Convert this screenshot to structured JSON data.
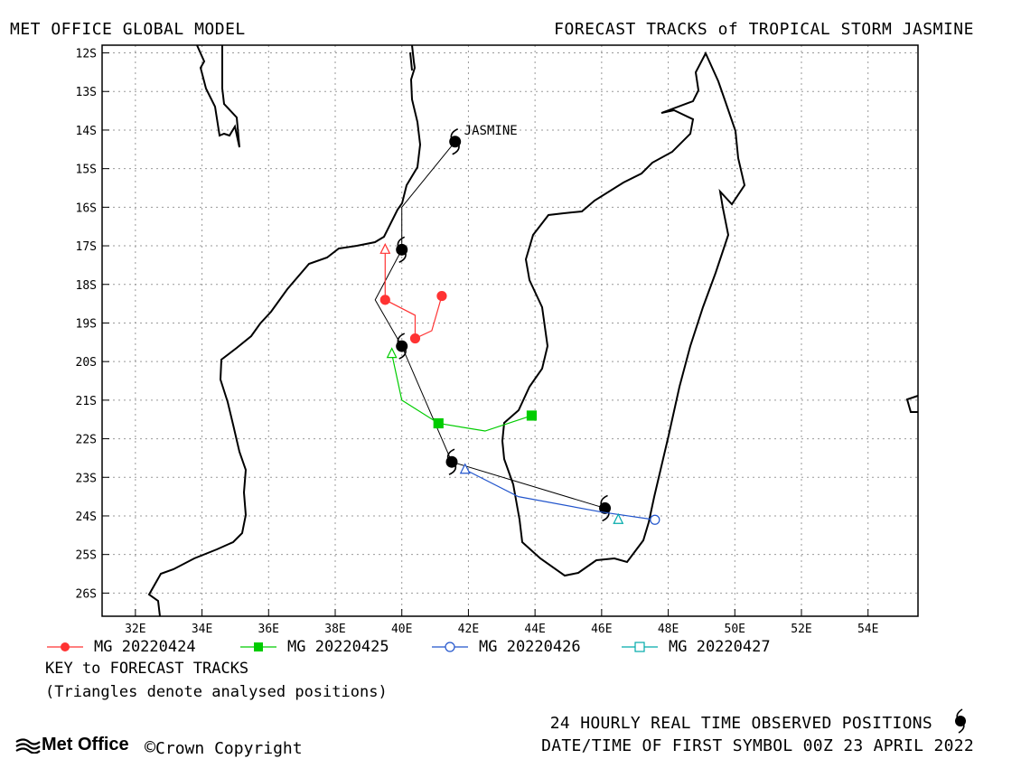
{
  "header": {
    "left": "MET OFFICE GLOBAL MODEL",
    "right": "FORECAST TRACKS of TROPICAL STORM JASMINE"
  },
  "map": {
    "lon_range": [
      31,
      55.5
    ],
    "lat_range": [
      -26.6,
      -11.8
    ],
    "grid": true,
    "x_ticks": [
      "32E",
      "34E",
      "36E",
      "38E",
      "40E",
      "42E",
      "44E",
      "46E",
      "48E",
      "50E",
      "52E",
      "54E"
    ],
    "y_ticks": [
      "12S",
      "13S",
      "14S",
      "15S",
      "16S",
      "17S",
      "18S",
      "19S",
      "20S",
      "21S",
      "22S",
      "23S",
      "24S",
      "25S",
      "26S"
    ],
    "storm_label": "JASMINE",
    "observed_track": [
      [
        41.6,
        -14.3
      ],
      [
        40.0,
        -16.0
      ],
      [
        40.0,
        -17.1
      ],
      [
        39.2,
        -18.4
      ],
      [
        40.0,
        -19.6
      ],
      [
        41.5,
        -22.6
      ],
      [
        46.1,
        -23.8
      ]
    ],
    "observed_symbols": [
      [
        41.6,
        -14.3
      ],
      [
        40.0,
        -17.1
      ],
      [
        40.0,
        -19.6
      ],
      [
        41.5,
        -22.6
      ],
      [
        46.1,
        -23.8
      ]
    ]
  },
  "tracks": [
    {
      "label": "MG 20220424",
      "color": "#ff3333",
      "marker": "circle",
      "filled": true,
      "points": [
        [
          39.5,
          -17.1
        ],
        [
          39.5,
          -18.4
        ],
        [
          40.4,
          -18.8
        ],
        [
          40.4,
          -19.4
        ],
        [
          40.9,
          -19.2
        ],
        [
          41.2,
          -18.3
        ]
      ],
      "analysed": [
        39.5,
        -17.1
      ],
      "markers": [
        [
          39.5,
          -18.4
        ],
        [
          40.4,
          -19.4
        ],
        [
          41.2,
          -18.3
        ]
      ]
    },
    {
      "label": "MG 20220425",
      "color": "#00cc00",
      "marker": "square",
      "filled": true,
      "points": [
        [
          39.7,
          -19.8
        ],
        [
          40.0,
          -21.0
        ],
        [
          41.1,
          -21.6
        ],
        [
          42.5,
          -21.8
        ],
        [
          43.9,
          -21.4
        ]
      ],
      "analysed": [
        39.7,
        -19.8
      ],
      "markers": [
        [
          41.1,
          -21.6
        ],
        [
          43.9,
          -21.4
        ]
      ]
    },
    {
      "label": "MG 20220426",
      "color": "#2255cc",
      "marker": "circle",
      "filled": false,
      "points": [
        [
          41.9,
          -22.8
        ],
        [
          43.5,
          -23.5
        ],
        [
          46.0,
          -23.9
        ],
        [
          47.6,
          -24.1
        ]
      ],
      "analysed": [
        41.9,
        -22.8
      ],
      "markers": [
        [
          47.6,
          -24.1
        ]
      ]
    },
    {
      "label": "MG 20220427",
      "color": "#00aaaa",
      "marker": "square",
      "filled": false,
      "points": [
        [
          46.5,
          -24.1
        ]
      ],
      "analysed": [
        46.5,
        -24.1
      ],
      "markers": []
    }
  ],
  "key": {
    "title": "KEY to FORECAST TRACKS",
    "note": "(Triangles denote analysed positions)"
  },
  "footer": {
    "observed": "24 HOURLY REAL TIME OBSERVED POSITIONS",
    "datetime": "DATE/TIME OF FIRST SYMBOL 00Z 23 APRIL 2022",
    "logo": "Met Office",
    "copyright": "Crown Copyright"
  },
  "colors": {
    "coast": "#000000",
    "grid": "#999999"
  }
}
